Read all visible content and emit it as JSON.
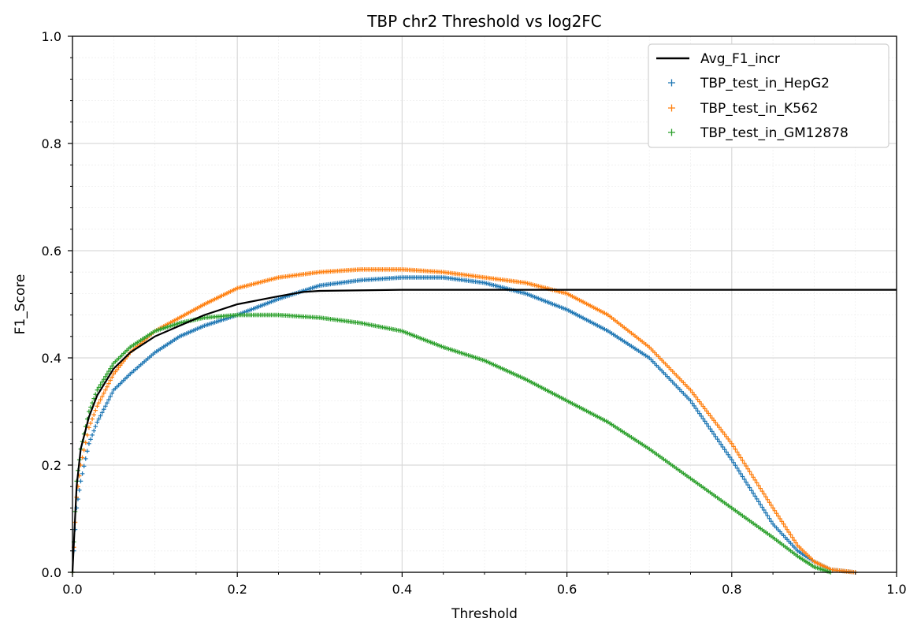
{
  "chart_data": {
    "type": "line",
    "title": "TBP chr2 Threshold vs log2FC",
    "xlabel": "Threshold",
    "ylabel": "F1_Score",
    "xlim": [
      0.0,
      1.0
    ],
    "ylim": [
      0.0,
      1.0
    ],
    "grid": true,
    "minor_grid": true,
    "legend_position": "top-right",
    "x_ticks": [
      "0.0",
      "0.2",
      "0.4",
      "0.6",
      "0.8",
      "1.0"
    ],
    "y_ticks": [
      "0.0",
      "0.2",
      "0.4",
      "0.6",
      "0.8",
      "1.0"
    ],
    "series": [
      {
        "name": "Avg_F1_incr",
        "style": "line",
        "color": "#000000",
        "points": [
          [
            0.0,
            0.0
          ],
          [
            0.005,
            0.16
          ],
          [
            0.01,
            0.23
          ],
          [
            0.02,
            0.29
          ],
          [
            0.03,
            0.33
          ],
          [
            0.05,
            0.38
          ],
          [
            0.07,
            0.41
          ],
          [
            0.1,
            0.44
          ],
          [
            0.13,
            0.46
          ],
          [
            0.16,
            0.48
          ],
          [
            0.2,
            0.5
          ],
          [
            0.25,
            0.515
          ],
          [
            0.28,
            0.523
          ],
          [
            0.3,
            0.525
          ],
          [
            0.4,
            0.527
          ],
          [
            0.5,
            0.527
          ],
          [
            0.6,
            0.527
          ],
          [
            0.7,
            0.527
          ],
          [
            0.8,
            0.527
          ],
          [
            0.9,
            0.527
          ],
          [
            1.0,
            0.527
          ]
        ]
      },
      {
        "name": "TBP_test_in_HepG2",
        "style": "scatter",
        "color": "#1f77b4",
        "points": [
          [
            0.0,
            0.0
          ],
          [
            0.005,
            0.12
          ],
          [
            0.01,
            0.17
          ],
          [
            0.02,
            0.24
          ],
          [
            0.03,
            0.28
          ],
          [
            0.05,
            0.34
          ],
          [
            0.07,
            0.37
          ],
          [
            0.1,
            0.41
          ],
          [
            0.13,
            0.44
          ],
          [
            0.16,
            0.46
          ],
          [
            0.2,
            0.48
          ],
          [
            0.25,
            0.51
          ],
          [
            0.3,
            0.535
          ],
          [
            0.35,
            0.545
          ],
          [
            0.4,
            0.55
          ],
          [
            0.45,
            0.55
          ],
          [
            0.5,
            0.54
          ],
          [
            0.55,
            0.52
          ],
          [
            0.6,
            0.49
          ],
          [
            0.65,
            0.45
          ],
          [
            0.7,
            0.4
          ],
          [
            0.75,
            0.32
          ],
          [
            0.8,
            0.21
          ],
          [
            0.85,
            0.09
          ],
          [
            0.88,
            0.04
          ],
          [
            0.9,
            0.02
          ],
          [
            0.92,
            0.005
          ],
          [
            0.95,
            0.0
          ]
        ]
      },
      {
        "name": "TBP_test_in_K562",
        "style": "scatter",
        "color": "#ff7f0e",
        "points": [
          [
            0.0,
            0.0
          ],
          [
            0.005,
            0.14
          ],
          [
            0.01,
            0.2
          ],
          [
            0.02,
            0.27
          ],
          [
            0.03,
            0.31
          ],
          [
            0.05,
            0.37
          ],
          [
            0.07,
            0.41
          ],
          [
            0.1,
            0.45
          ],
          [
            0.13,
            0.475
          ],
          [
            0.16,
            0.5
          ],
          [
            0.2,
            0.53
          ],
          [
            0.25,
            0.55
          ],
          [
            0.3,
            0.56
          ],
          [
            0.35,
            0.565
          ],
          [
            0.4,
            0.565
          ],
          [
            0.45,
            0.56
          ],
          [
            0.5,
            0.55
          ],
          [
            0.55,
            0.54
          ],
          [
            0.6,
            0.52
          ],
          [
            0.65,
            0.48
          ],
          [
            0.7,
            0.42
          ],
          [
            0.75,
            0.34
          ],
          [
            0.8,
            0.24
          ],
          [
            0.85,
            0.12
          ],
          [
            0.88,
            0.05
          ],
          [
            0.9,
            0.02
          ],
          [
            0.92,
            0.005
          ],
          [
            0.95,
            0.0
          ]
        ]
      },
      {
        "name": "TBP_test_in_GM12878",
        "style": "scatter",
        "color": "#2ca02c",
        "points": [
          [
            0.0,
            0.0
          ],
          [
            0.005,
            0.17
          ],
          [
            0.01,
            0.23
          ],
          [
            0.02,
            0.3
          ],
          [
            0.03,
            0.34
          ],
          [
            0.05,
            0.39
          ],
          [
            0.07,
            0.42
          ],
          [
            0.1,
            0.45
          ],
          [
            0.13,
            0.465
          ],
          [
            0.16,
            0.475
          ],
          [
            0.2,
            0.48
          ],
          [
            0.25,
            0.48
          ],
          [
            0.3,
            0.475
          ],
          [
            0.35,
            0.465
          ],
          [
            0.4,
            0.45
          ],
          [
            0.45,
            0.42
          ],
          [
            0.5,
            0.395
          ],
          [
            0.55,
            0.36
          ],
          [
            0.6,
            0.32
          ],
          [
            0.65,
            0.28
          ],
          [
            0.7,
            0.23
          ],
          [
            0.75,
            0.175
          ],
          [
            0.8,
            0.12
          ],
          [
            0.85,
            0.065
          ],
          [
            0.88,
            0.03
          ],
          [
            0.9,
            0.01
          ],
          [
            0.92,
            0.0
          ]
        ]
      }
    ]
  }
}
